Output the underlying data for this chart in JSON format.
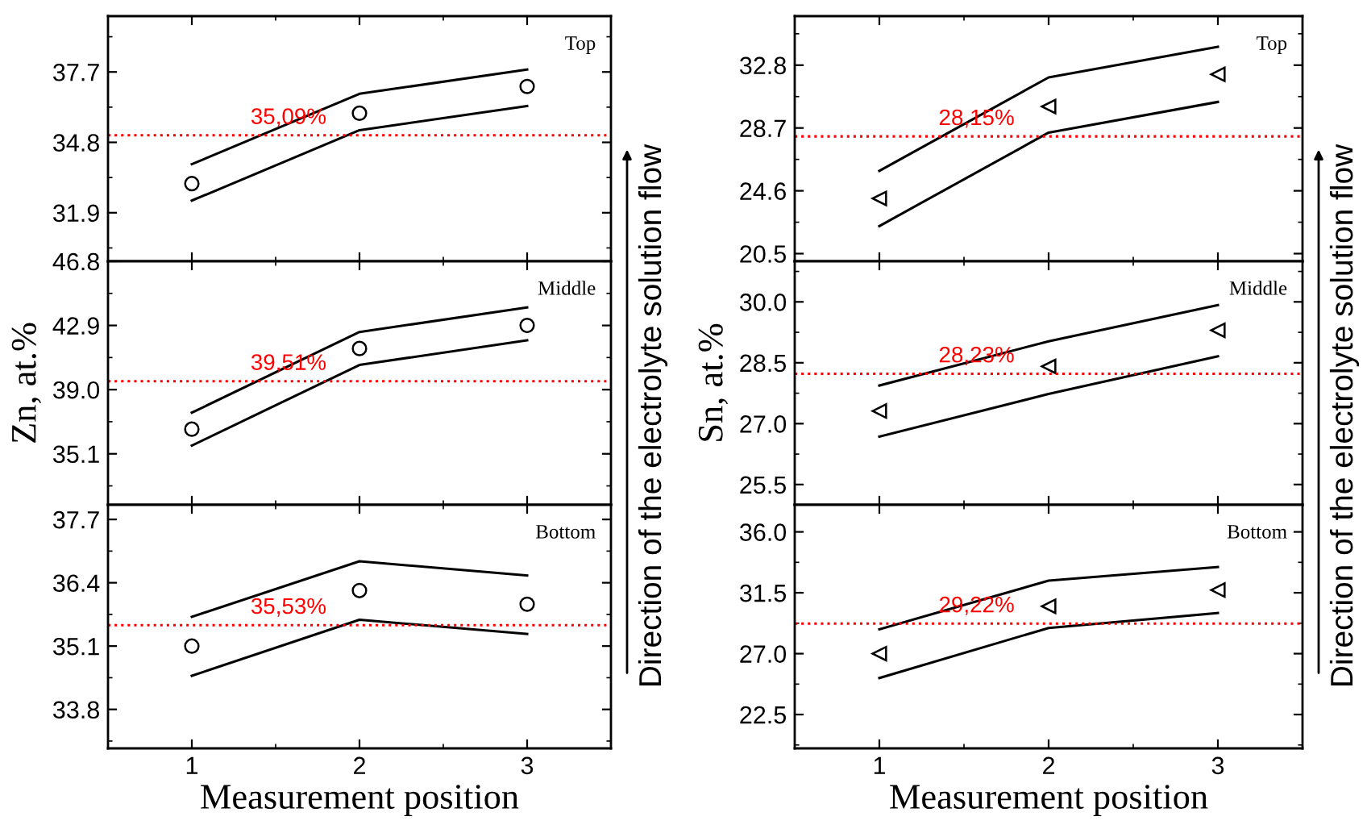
{
  "chart_data": [
    {
      "type": "line",
      "x": [
        1,
        2,
        3
      ],
      "xlim": [
        0.5,
        3.5
      ],
      "xticks": [
        1,
        2,
        3
      ],
      "ylim": [
        29.9,
        40.0
      ],
      "yticks": [
        31.9,
        34.8,
        37.7
      ],
      "tick_labels": "y",
      "grid": false,
      "legend": false,
      "series": [
        {
          "type": "scatter",
          "marker": "circle",
          "color": "#000000",
          "values": [
            33.1,
            36.0,
            37.1
          ]
        },
        {
          "color": "#000000",
          "values": [
            33.9,
            36.8,
            37.8
          ]
        },
        {
          "color": "#000000",
          "values": [
            32.4,
            35.3,
            36.3
          ]
        }
      ],
      "ref_lines": [
        {
          "axis": "y",
          "value": 35.09,
          "label": "35,09%",
          "color": "#ff0000",
          "line_style": "dotted"
        }
      ],
      "annotations": [
        "Top"
      ]
    },
    {
      "type": "line",
      "x": [
        1,
        2,
        3
      ],
      "xlim": [
        0.5,
        3.5
      ],
      "xticks": [
        1,
        2,
        3
      ],
      "ylim": [
        32.0,
        46.8
      ],
      "yticks": [
        35.1,
        {
          "value": 39,
          "label": "39.0"
        },
        42.9,
        46.8
      ],
      "tick_labels": "y",
      "grid": false,
      "legend": false,
      "ylabel": "Zn, at.%",
      "series": [
        {
          "type": "scatter",
          "marker": "circle",
          "color": "#000000",
          "values": [
            36.6,
            41.5,
            42.9
          ]
        },
        {
          "color": "#000000",
          "values": [
            37.6,
            42.5,
            44.0
          ]
        },
        {
          "color": "#000000",
          "values": [
            35.6,
            40.5,
            42.0
          ]
        }
      ],
      "ref_lines": [
        {
          "axis": "y",
          "value": 39.51,
          "label": "39,51%",
          "color": "#ff0000",
          "line_style": "dotted"
        }
      ],
      "annotations": [
        "Middle",
        "Direction of the electrolyte solution flow"
      ]
    },
    {
      "type": "line",
      "x": [
        1,
        2,
        3
      ],
      "xlim": [
        0.5,
        3.5
      ],
      "xticks": [
        1,
        2,
        3
      ],
      "ylim": [
        33.0,
        38.0
      ],
      "yticks": [
        33.8,
        35.1,
        36.4,
        37.7
      ],
      "grid": false,
      "legend": false,
      "xlabel": "Measurement position",
      "series": [
        {
          "type": "scatter",
          "marker": "circle",
          "color": "#000000",
          "values": [
            35.1,
            36.24,
            35.96
          ]
        },
        {
          "color": "#000000",
          "values": [
            35.7,
            36.84,
            36.55
          ]
        },
        {
          "color": "#000000",
          "values": [
            34.49,
            35.64,
            35.35
          ]
        }
      ],
      "ref_lines": [
        {
          "axis": "y",
          "value": 35.53,
          "label": "35,53%",
          "color": "#ff0000",
          "line_style": "dotted"
        }
      ],
      "annotations": [
        "Bottom"
      ]
    },
    {
      "type": "line",
      "x": [
        1,
        2,
        3
      ],
      "xlim": [
        0.5,
        3.5
      ],
      "xticks": [
        1,
        2,
        3
      ],
      "ylim": [
        20.0,
        36.0
      ],
      "yticks": [
        20.5,
        24.6,
        28.7,
        32.8
      ],
      "tick_labels": "y",
      "grid": false,
      "legend": false,
      "series": [
        {
          "type": "scatter",
          "marker": "triangle",
          "color": "#000000",
          "values": [
            24.1,
            30.1,
            32.2
          ]
        },
        {
          "color": "#000000",
          "values": [
            25.9,
            32.0,
            34.0
          ]
        },
        {
          "color": "#000000",
          "values": [
            22.3,
            28.4,
            30.4
          ]
        }
      ],
      "ref_lines": [
        {
          "axis": "y",
          "value": 28.15,
          "label": "28,15%",
          "color": "#ff0000",
          "line_style": "dotted"
        }
      ],
      "annotations": [
        "Top"
      ]
    },
    {
      "type": "line",
      "x": [
        1,
        2,
        3
      ],
      "xlim": [
        0.5,
        3.5
      ],
      "xticks": [
        1,
        2,
        3
      ],
      "ylim": [
        25.0,
        31.0
      ],
      "yticks": [
        25.5,
        {
          "value": 27,
          "label": "27.0"
        },
        28.5,
        {
          "value": 30,
          "label": "30.0"
        }
      ],
      "tick_labels": "y",
      "grid": false,
      "legend": false,
      "ylabel": "Sn, at.%",
      "series": [
        {
          "type": "scatter",
          "marker": "triangle",
          "color": "#000000",
          "values": [
            27.31,
            28.41,
            29.3
          ]
        },
        {
          "color": "#000000",
          "values": [
            27.94,
            29.03,
            29.92
          ]
        },
        {
          "color": "#000000",
          "values": [
            26.68,
            27.73,
            28.66
          ]
        }
      ],
      "ref_lines": [
        {
          "axis": "y",
          "value": 28.23,
          "label": "28,23%",
          "color": "#ff0000",
          "line_style": "dotted"
        }
      ],
      "annotations": [
        "Middle",
        "Direction of the electrolyte solution flow"
      ]
    },
    {
      "type": "line",
      "x": [
        1,
        2,
        3
      ],
      "xlim": [
        0.5,
        3.5
      ],
      "xticks": [
        1,
        2,
        3
      ],
      "ylim": [
        20.0,
        38.0
      ],
      "yticks": [
        22.5,
        {
          "value": 27,
          "label": "27.0"
        },
        31.5,
        {
          "value": 36,
          "label": "36.0"
        }
      ],
      "grid": false,
      "legend": false,
      "xlabel": "Measurement position",
      "series": [
        {
          "type": "scatter",
          "marker": "triangle",
          "color": "#000000",
          "values": [
            27.0,
            30.5,
            31.7
          ]
        },
        {
          "color": "#000000",
          "values": [
            28.8,
            32.4,
            33.4
          ]
        },
        {
          "color": "#000000",
          "values": [
            25.2,
            28.9,
            30.0
          ]
        }
      ],
      "ref_lines": [
        {
          "axis": "y",
          "value": 29.22,
          "label": "29,22%",
          "color": "#ff0000",
          "line_style": "dotted"
        }
      ],
      "annotations": [
        "Bottom"
      ]
    }
  ]
}
